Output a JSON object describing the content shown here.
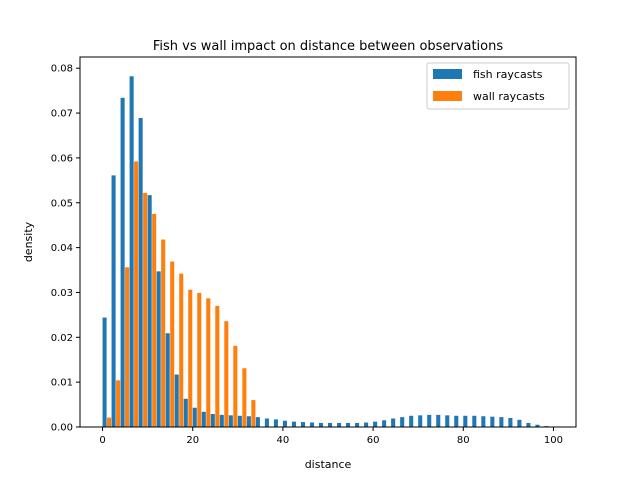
{
  "chart_data": {
    "type": "bar",
    "title": "Fish vs wall impact on distance between observations",
    "xlabel": "distance",
    "ylabel": "density",
    "xlim": [
      -5,
      105
    ],
    "ylim": [
      0,
      0.0825
    ],
    "xticks": [
      0,
      20,
      40,
      60,
      80,
      100
    ],
    "yticks": [
      0.0,
      0.01,
      0.02,
      0.03,
      0.04,
      0.05,
      0.06,
      0.07,
      0.08
    ],
    "ytick_labels": [
      "0.00",
      "0.01",
      "0.02",
      "0.03",
      "0.04",
      "0.05",
      "0.06",
      "0.07",
      "0.08"
    ],
    "bin_width": 2,
    "bin_edges_start": 0,
    "legend_position": "top-right",
    "grid": false,
    "series": [
      {
        "name": "fish raycasts",
        "color": "#1f77b4",
        "values": [
          0.0244,
          0.0561,
          0.0734,
          0.0782,
          0.0689,
          0.0517,
          0.0347,
          0.0209,
          0.0117,
          0.0063,
          0.0043,
          0.0034,
          0.0029,
          0.0027,
          0.0026,
          0.0025,
          0.0024,
          0.0022,
          0.0019,
          0.0017,
          0.0014,
          0.0012,
          0.0011,
          0.001,
          0.0009,
          0.0009,
          0.0009,
          0.0009,
          0.0009,
          0.001,
          0.0012,
          0.0015,
          0.0019,
          0.0022,
          0.0025,
          0.0026,
          0.0027,
          0.0027,
          0.0026,
          0.0025,
          0.0025,
          0.0025,
          0.0024,
          0.0023,
          0.0022,
          0.002,
          0.0016,
          0.0009,
          0.0005,
          0.0002
        ]
      },
      {
        "name": "wall raycasts",
        "color": "#ff7f0e",
        "values": [
          0.0021,
          0.0104,
          0.0356,
          0.0592,
          0.0522,
          0.0475,
          0.0418,
          0.0369,
          0.0342,
          0.0306,
          0.0299,
          0.0287,
          0.027,
          0.0236,
          0.0181,
          0.0131,
          0.006,
          0,
          0,
          0,
          0,
          0,
          0,
          0,
          0,
          0,
          0,
          0,
          0,
          0,
          0,
          0,
          0,
          0,
          0,
          0,
          0,
          0,
          0,
          0,
          0,
          0,
          0,
          0,
          0,
          0,
          0,
          0,
          0,
          0
        ]
      }
    ]
  }
}
